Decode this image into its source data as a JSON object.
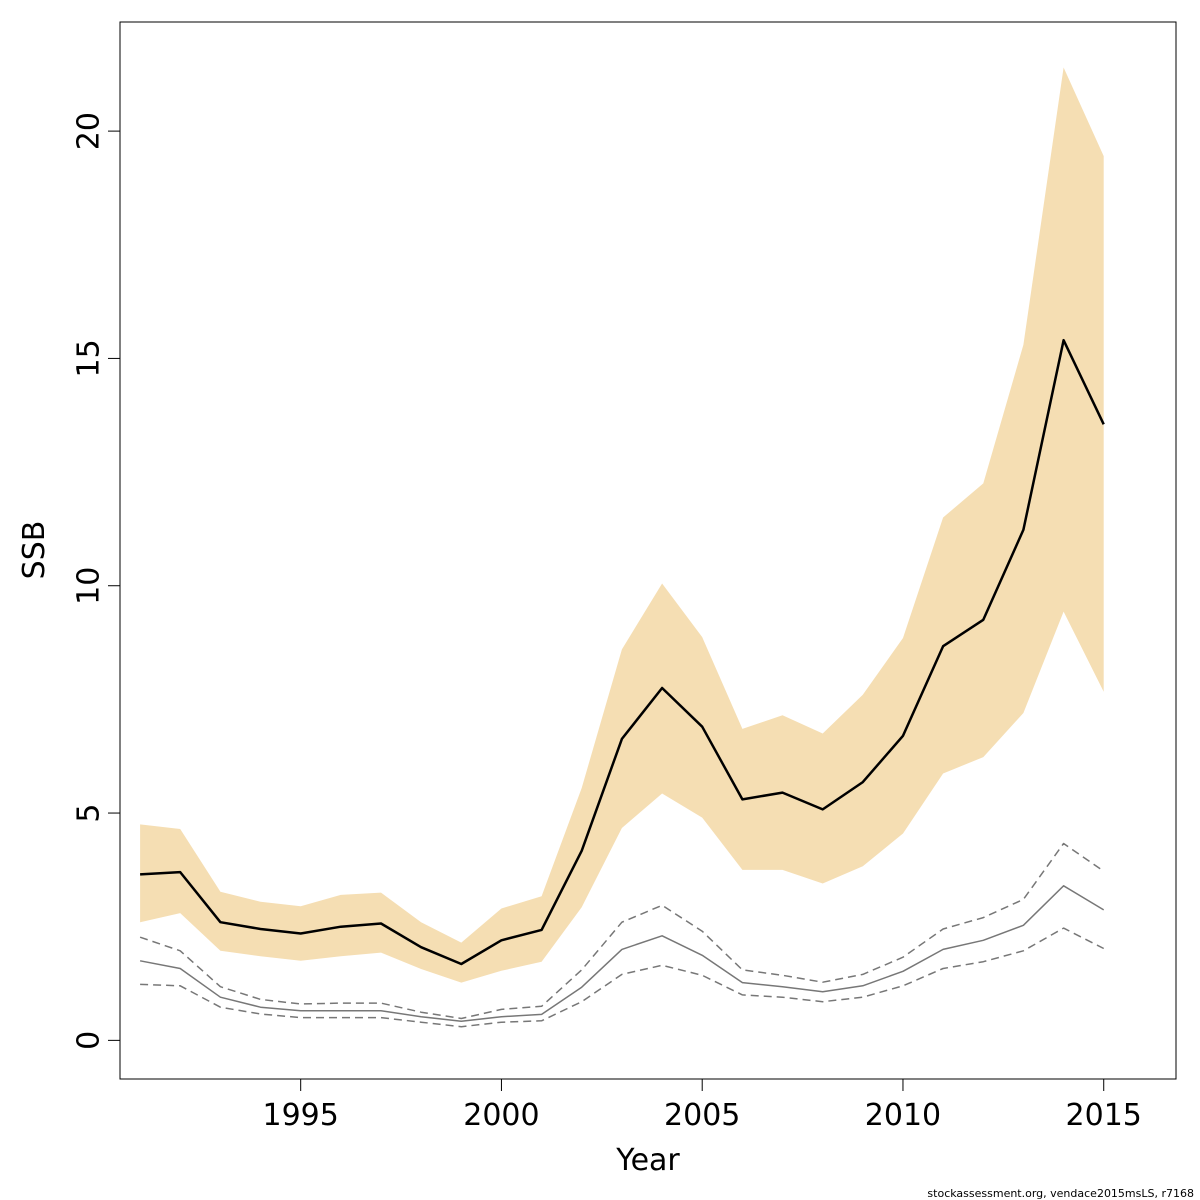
{
  "chart_data": {
    "type": "line",
    "title": "",
    "xlabel": "Year",
    "ylabel": "SSB",
    "xlim": [
      1990.5,
      2016.8
    ],
    "ylim": [
      -0.85,
      22.4
    ],
    "xticks": [
      1995,
      2000,
      2005,
      2010,
      2015
    ],
    "yticks": [
      0,
      5,
      10,
      15,
      20
    ],
    "grid": false,
    "legend": "none",
    "x": [
      1991,
      1992,
      1993,
      1994,
      1995,
      1996,
      1997,
      1998,
      1999,
      2000,
      2001,
      2002,
      2003,
      2004,
      2005,
      2006,
      2007,
      2008,
      2009,
      2010,
      2011,
      2012,
      2013,
      2014,
      2015
    ],
    "series": [
      {
        "role": "estimate",
        "color": "#000000",
        "style": "solid",
        "values": [
          3.65,
          3.7,
          2.6,
          2.45,
          2.35,
          2.5,
          2.57,
          2.05,
          1.68,
          2.2,
          2.43,
          4.17,
          6.63,
          7.75,
          6.9,
          5.3,
          5.45,
          5.08,
          5.68,
          6.7,
          8.67,
          9.25,
          11.23,
          15.4,
          13.55
        ]
      },
      {
        "role": "estimate-upper",
        "color": "#f5deb3",
        "style": "band",
        "values": [
          4.75,
          4.65,
          3.27,
          3.05,
          2.95,
          3.2,
          3.25,
          2.6,
          2.15,
          2.9,
          3.17,
          5.55,
          8.6,
          10.05,
          8.87,
          6.85,
          7.15,
          6.75,
          7.6,
          8.85,
          11.5,
          12.25,
          15.3,
          21.4,
          19.45
        ]
      },
      {
        "role": "estimate-lower",
        "color": "#f5deb3",
        "style": "band",
        "values": [
          2.6,
          2.8,
          1.97,
          1.85,
          1.75,
          1.85,
          1.93,
          1.57,
          1.27,
          1.53,
          1.73,
          2.93,
          4.67,
          5.43,
          4.9,
          3.75,
          3.75,
          3.45,
          3.83,
          4.55,
          5.87,
          6.23,
          7.2,
          9.43,
          7.67
        ]
      },
      {
        "role": "secondary",
        "color": "#777777",
        "style": "solid",
        "values": [
          1.75,
          1.58,
          0.95,
          0.73,
          0.65,
          0.65,
          0.65,
          0.52,
          0.42,
          0.52,
          0.57,
          1.17,
          2.0,
          2.3,
          1.87,
          1.27,
          1.18,
          1.07,
          1.2,
          1.52,
          2.0,
          2.2,
          2.53,
          3.4,
          2.87
        ]
      },
      {
        "role": "secondary-upper",
        "color": "#777777",
        "style": "dashed",
        "values": [
          2.27,
          1.97,
          1.18,
          0.9,
          0.8,
          0.82,
          0.82,
          0.62,
          0.48,
          0.68,
          0.75,
          1.55,
          2.6,
          2.97,
          2.4,
          1.55,
          1.43,
          1.28,
          1.45,
          1.83,
          2.45,
          2.7,
          3.1,
          4.33,
          3.72
        ]
      },
      {
        "role": "secondary-lower",
        "color": "#777777",
        "style": "dashed",
        "values": [
          1.23,
          1.2,
          0.73,
          0.58,
          0.5,
          0.5,
          0.5,
          0.4,
          0.3,
          0.4,
          0.43,
          0.85,
          1.45,
          1.65,
          1.43,
          1.0,
          0.95,
          0.85,
          0.95,
          1.2,
          1.58,
          1.73,
          1.97,
          2.47,
          2.02
        ]
      }
    ]
  },
  "footer": {
    "source_note": "stockassessment.org, vendace2015msLS, r7168"
  }
}
